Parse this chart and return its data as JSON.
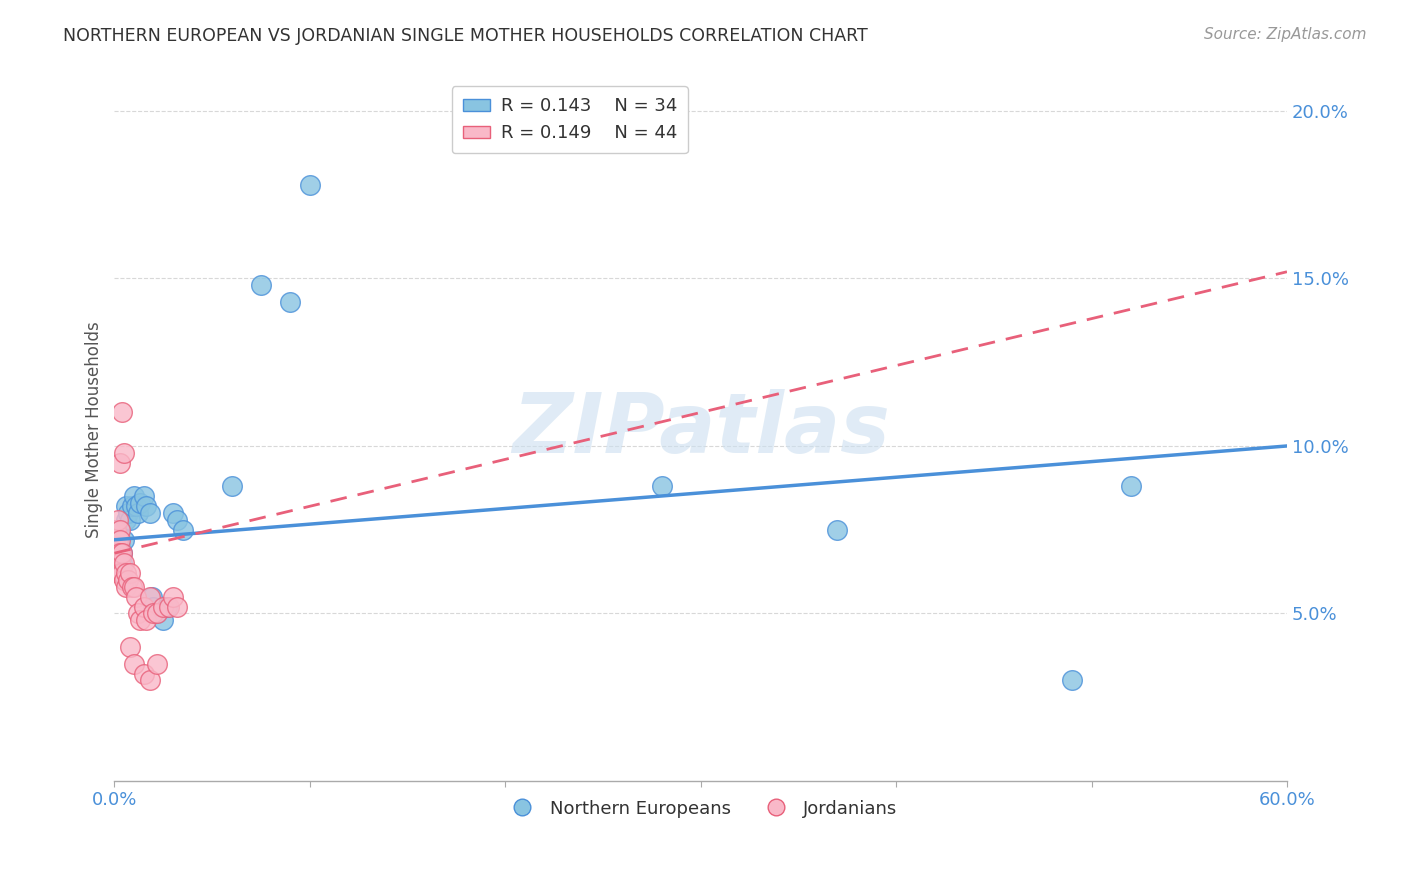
{
  "title": "NORTHERN EUROPEAN VS JORDANIAN SINGLE MOTHER HOUSEHOLDS CORRELATION CHART",
  "source": "Source: ZipAtlas.com",
  "ylabel": "Single Mother Households",
  "xlim": [
    0.0,
    0.6
  ],
  "ylim": [
    0.0,
    0.21
  ],
  "xticks": [
    0.0,
    0.1,
    0.2,
    0.3,
    0.4,
    0.5,
    0.6
  ],
  "yticks": [
    0.05,
    0.1,
    0.15,
    0.2
  ],
  "xticklabels": [
    "0.0%",
    "",
    "",
    "",
    "",
    "",
    "60.0%"
  ],
  "yticklabels": [
    "5.0%",
    "10.0%",
    "15.0%",
    "20.0%"
  ],
  "watermark_text": "ZIPatlas",
  "legend_blue_r": "R = 0.143",
  "legend_blue_n": "N = 34",
  "legend_pink_r": "R = 0.149",
  "legend_pink_n": "N = 44",
  "blue_scatter_color": "#89c4e1",
  "pink_scatter_color": "#f9b8c8",
  "blue_edge_color": "#4a90d9",
  "pink_edge_color": "#e8607a",
  "blue_line_color": "#4a90d9",
  "pink_line_color": "#e8607a",
  "blue_scatter": [
    [
      0.001,
      0.075
    ],
    [
      0.002,
      0.072
    ],
    [
      0.003,
      0.07
    ],
    [
      0.004,
      0.068
    ],
    [
      0.004,
      0.065
    ],
    [
      0.005,
      0.072
    ],
    [
      0.006,
      0.078
    ],
    [
      0.006,
      0.082
    ],
    [
      0.007,
      0.08
    ],
    [
      0.008,
      0.078
    ],
    [
      0.009,
      0.082
    ],
    [
      0.01,
      0.085
    ],
    [
      0.011,
      0.082
    ],
    [
      0.012,
      0.08
    ],
    [
      0.013,
      0.083
    ],
    [
      0.015,
      0.085
    ],
    [
      0.016,
      0.082
    ],
    [
      0.018,
      0.08
    ],
    [
      0.019,
      0.055
    ],
    [
      0.02,
      0.052
    ],
    [
      0.022,
      0.05
    ],
    [
      0.025,
      0.048
    ],
    [
      0.027,
      0.052
    ],
    [
      0.03,
      0.08
    ],
    [
      0.032,
      0.078
    ],
    [
      0.035,
      0.075
    ],
    [
      0.06,
      0.088
    ],
    [
      0.075,
      0.148
    ],
    [
      0.09,
      0.143
    ],
    [
      0.1,
      0.178
    ],
    [
      0.28,
      0.088
    ],
    [
      0.37,
      0.075
    ],
    [
      0.49,
      0.03
    ],
    [
      0.52,
      0.088
    ]
  ],
  "pink_scatter": [
    [
      0.001,
      0.075
    ],
    [
      0.001,
      0.07
    ],
    [
      0.001,
      0.068
    ],
    [
      0.001,
      0.065
    ],
    [
      0.002,
      0.078
    ],
    [
      0.002,
      0.072
    ],
    [
      0.002,
      0.068
    ],
    [
      0.002,
      0.065
    ],
    [
      0.002,
      0.062
    ],
    [
      0.003,
      0.075
    ],
    [
      0.003,
      0.072
    ],
    [
      0.003,
      0.068
    ],
    [
      0.003,
      0.065
    ],
    [
      0.003,
      0.062
    ],
    [
      0.004,
      0.068
    ],
    [
      0.004,
      0.062
    ],
    [
      0.005,
      0.065
    ],
    [
      0.005,
      0.06
    ],
    [
      0.006,
      0.062
    ],
    [
      0.006,
      0.058
    ],
    [
      0.007,
      0.06
    ],
    [
      0.008,
      0.062
    ],
    [
      0.009,
      0.058
    ],
    [
      0.01,
      0.058
    ],
    [
      0.011,
      0.055
    ],
    [
      0.012,
      0.05
    ],
    [
      0.013,
      0.048
    ],
    [
      0.015,
      0.052
    ],
    [
      0.016,
      0.048
    ],
    [
      0.018,
      0.055
    ],
    [
      0.02,
      0.05
    ],
    [
      0.022,
      0.05
    ],
    [
      0.025,
      0.052
    ],
    [
      0.028,
      0.052
    ],
    [
      0.03,
      0.055
    ],
    [
      0.032,
      0.052
    ],
    [
      0.003,
      0.095
    ],
    [
      0.004,
      0.11
    ],
    [
      0.005,
      0.098
    ],
    [
      0.008,
      0.04
    ],
    [
      0.01,
      0.035
    ],
    [
      0.015,
      0.032
    ],
    [
      0.018,
      0.03
    ],
    [
      0.022,
      0.035
    ]
  ],
  "blue_trendline_x": [
    0.0,
    0.6
  ],
  "blue_trendline_y": [
    0.072,
    0.1
  ],
  "pink_trendline_x": [
    0.0,
    0.6
  ],
  "pink_trendline_y": [
    0.068,
    0.152
  ],
  "legend_bottom_labels": [
    "Northern Europeans",
    "Jordanians"
  ],
  "background_color": "#ffffff",
  "grid_color": "#d8d8d8",
  "axis_color": "#4a90d9",
  "tick_label_color": "#4a90d9",
  "title_color": "#333333",
  "source_color": "#999999",
  "ylabel_color": "#555555"
}
